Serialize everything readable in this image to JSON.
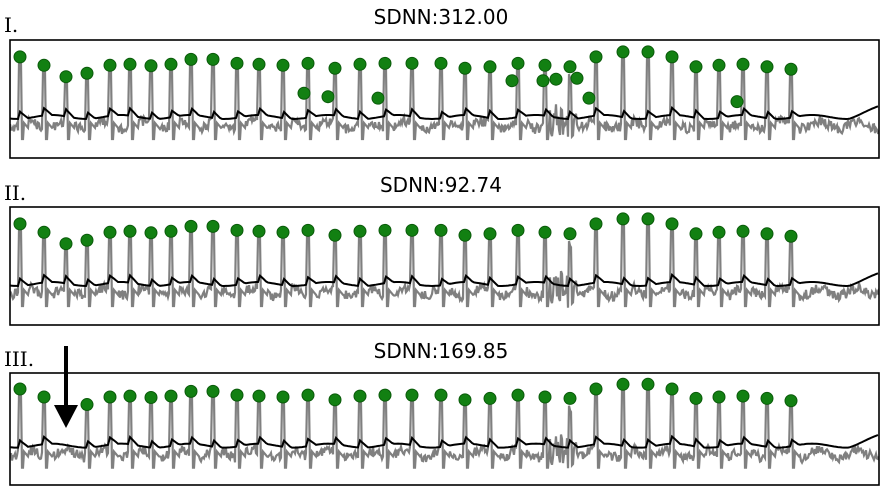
{
  "chart_data": [
    {
      "type": "line",
      "panel_label": "I.",
      "title": "SDNN:312.00",
      "beat_markers": [
        0.95,
        0.78,
        0.55,
        0.62,
        0.78,
        0.8,
        0.77,
        0.8,
        0.9,
        0.9,
        0.82,
        0.8,
        0.78,
        0.82,
        0.72,
        0.8,
        0.82,
        0.82,
        0.82,
        0.72,
        0.75,
        0.82,
        0.78,
        0.75,
        0.95,
        1.05,
        1.05,
        0.95,
        0.75,
        0.78,
        0.8,
        0.75,
        0.7
      ],
      "extra_markers": [
        0.62,
        0.55,
        0.52,
        0.55,
        0.55,
        0.58,
        0.6,
        0.52,
        0.45
      ]
    },
    {
      "type": "line",
      "panel_label": "II.",
      "title": "SDNN:92.74",
      "beat_markers": [
        0.95,
        0.78,
        0.55,
        0.62,
        0.78,
        0.8,
        0.77,
        0.8,
        0.9,
        0.9,
        0.82,
        0.8,
        0.78,
        0.82,
        0.72,
        0.8,
        0.82,
        0.82,
        0.82,
        0.72,
        0.75,
        0.82,
        0.78,
        0.75,
        0.95,
        1.05,
        1.05,
        0.95,
        0.75,
        0.78,
        0.8,
        0.75,
        0.7
      ]
    },
    {
      "type": "line",
      "panel_label": "III.",
      "title": "SDNN:169.85",
      "beat_markers": [
        0.95,
        0.78,
        0.62,
        0.78,
        0.8,
        0.77,
        0.8,
        0.9,
        0.9,
        0.82,
        0.8,
        0.78,
        0.82,
        0.72,
        0.8,
        0.82,
        0.82,
        0.82,
        0.72,
        0.75,
        0.82,
        0.78,
        0.75,
        0.95,
        1.05,
        1.05,
        0.95,
        0.75,
        0.78,
        0.8,
        0.75,
        0.7
      ],
      "annotation": "downward arrow marking a missing beat"
    }
  ],
  "colors": {
    "ecg": "#808080",
    "envelope": "#000000",
    "marker_fill": "#128012",
    "marker_edge": "#0a5a0a"
  }
}
